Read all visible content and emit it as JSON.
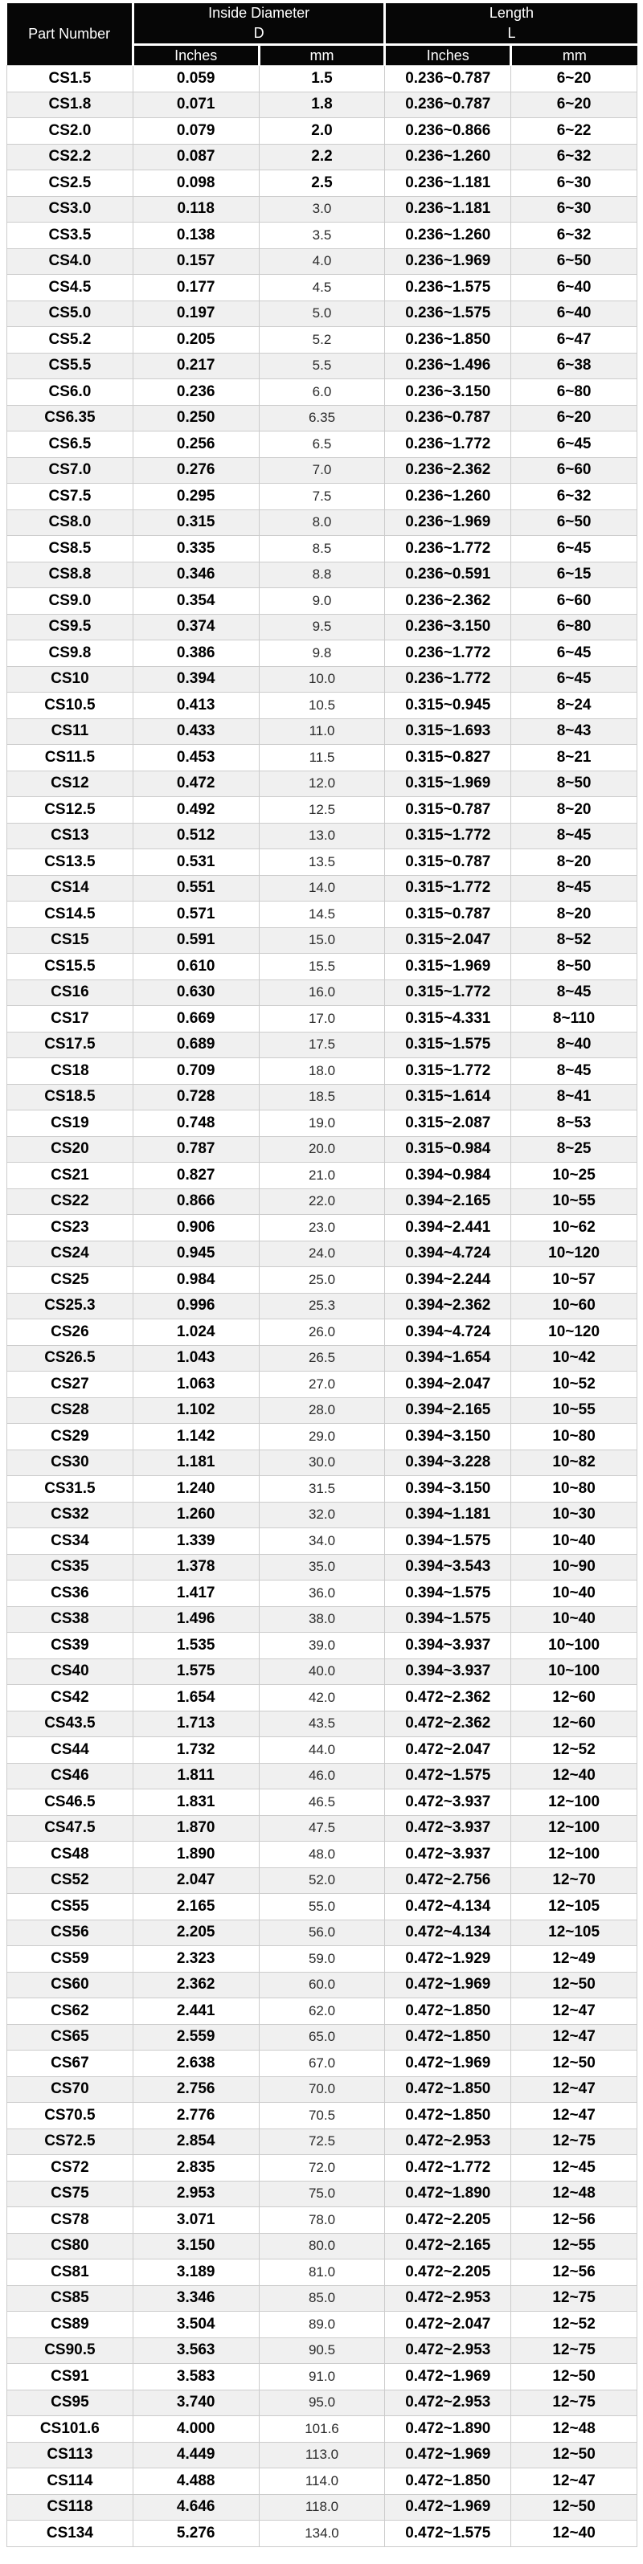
{
  "table": {
    "header": {
      "part_number": "Part Number",
      "inside_diameter": {
        "title": "Inside Diameter",
        "symbol": "D"
      },
      "length": {
        "title": "Length",
        "symbol": "L"
      },
      "units": {
        "inches": "Inches",
        "mm": "mm"
      }
    },
    "columns": [
      "part-number",
      "d-inches",
      "d-mm",
      "l-inches",
      "l-mm"
    ],
    "rows": [
      [
        "CS1.5",
        "0.059",
        "1.5",
        "0.236~0.787",
        "6~20"
      ],
      [
        "CS1.8",
        "0.071",
        "1.8",
        "0.236~0.787",
        "6~20"
      ],
      [
        "CS2.0",
        "0.079",
        "2.0",
        "0.236~0.866",
        "6~22"
      ],
      [
        "CS2.2",
        "0.087",
        "2.2",
        "0.236~1.260",
        "6~32"
      ],
      [
        "CS2.5",
        "0.098",
        "2.5",
        "0.236~1.181",
        "6~30"
      ],
      [
        "CS3.0",
        "0.118",
        "3.0",
        "0.236~1.181",
        "6~30"
      ],
      [
        "CS3.5",
        "0.138",
        "3.5",
        "0.236~1.260",
        "6~32"
      ],
      [
        "CS4.0",
        "0.157",
        "4.0",
        "0.236~1.969",
        "6~50"
      ],
      [
        "CS4.5",
        "0.177",
        "4.5",
        "0.236~1.575",
        "6~40"
      ],
      [
        "CS5.0",
        "0.197",
        "5.0",
        "0.236~1.575",
        "6~40"
      ],
      [
        "CS5.2",
        "0.205",
        "5.2",
        "0.236~1.850",
        "6~47"
      ],
      [
        "CS5.5",
        "0.217",
        "5.5",
        "0.236~1.496",
        "6~38"
      ],
      [
        "CS6.0",
        "0.236",
        "6.0",
        "0.236~3.150",
        "6~80"
      ],
      [
        "CS6.35",
        "0.250",
        "6.35",
        "0.236~0.787",
        "6~20"
      ],
      [
        "CS6.5",
        "0.256",
        "6.5",
        "0.236~1.772",
        "6~45"
      ],
      [
        "CS7.0",
        "0.276",
        "7.0",
        "0.236~2.362",
        "6~60"
      ],
      [
        "CS7.5",
        "0.295",
        "7.5",
        "0.236~1.260",
        "6~32"
      ],
      [
        "CS8.0",
        "0.315",
        "8.0",
        "0.236~1.969",
        "6~50"
      ],
      [
        "CS8.5",
        "0.335",
        "8.5",
        "0.236~1.772",
        "6~45"
      ],
      [
        "CS8.8",
        "0.346",
        "8.8",
        "0.236~0.591",
        "6~15"
      ],
      [
        "CS9.0",
        "0.354",
        "9.0",
        "0.236~2.362",
        "6~60"
      ],
      [
        "CS9.5",
        "0.374",
        "9.5",
        "0.236~3.150",
        "6~80"
      ],
      [
        "CS9.8",
        "0.386",
        "9.8",
        "0.236~1.772",
        "6~45"
      ],
      [
        "CS10",
        "0.394",
        "10.0",
        "0.236~1.772",
        "6~45"
      ],
      [
        "CS10.5",
        "0.413",
        "10.5",
        "0.315~0.945",
        "8~24"
      ],
      [
        "CS11",
        "0.433",
        "11.0",
        "0.315~1.693",
        "8~43"
      ],
      [
        "CS11.5",
        "0.453",
        "11.5",
        "0.315~0.827",
        "8~21"
      ],
      [
        "CS12",
        "0.472",
        "12.0",
        "0.315~1.969",
        "8~50"
      ],
      [
        "CS12.5",
        "0.492",
        "12.5",
        "0.315~0.787",
        "8~20"
      ],
      [
        "CS13",
        "0.512",
        "13.0",
        "0.315~1.772",
        "8~45"
      ],
      [
        "CS13.5",
        "0.531",
        "13.5",
        "0.315~0.787",
        "8~20"
      ],
      [
        "CS14",
        "0.551",
        "14.0",
        "0.315~1.772",
        "8~45"
      ],
      [
        "CS14.5",
        "0.571",
        "14.5",
        "0.315~0.787",
        "8~20"
      ],
      [
        "CS15",
        "0.591",
        "15.0",
        "0.315~2.047",
        "8~52"
      ],
      [
        "CS15.5",
        "0.610",
        "15.5",
        "0.315~1.969",
        "8~50"
      ],
      [
        "CS16",
        "0.630",
        "16.0",
        "0.315~1.772",
        "8~45"
      ],
      [
        "CS17",
        "0.669",
        "17.0",
        "0.315~4.331",
        "8~110"
      ],
      [
        "CS17.5",
        "0.689",
        "17.5",
        "0.315~1.575",
        "8~40"
      ],
      [
        "CS18",
        "0.709",
        "18.0",
        "0.315~1.772",
        "8~45"
      ],
      [
        "CS18.5",
        "0.728",
        "18.5",
        "0.315~1.614",
        "8~41"
      ],
      [
        "CS19",
        "0.748",
        "19.0",
        "0.315~2.087",
        "8~53"
      ],
      [
        "CS20",
        "0.787",
        "20.0",
        "0.315~0.984",
        "8~25"
      ],
      [
        "CS21",
        "0.827",
        "21.0",
        "0.394~0.984",
        "10~25"
      ],
      [
        "CS22",
        "0.866",
        "22.0",
        "0.394~2.165",
        "10~55"
      ],
      [
        "CS23",
        "0.906",
        "23.0",
        "0.394~2.441",
        "10~62"
      ],
      [
        "CS24",
        "0.945",
        "24.0",
        "0.394~4.724",
        "10~120"
      ],
      [
        "CS25",
        "0.984",
        "25.0",
        "0.394~2.244",
        "10~57"
      ],
      [
        "CS25.3",
        "0.996",
        "25.3",
        "0.394~2.362",
        "10~60"
      ],
      [
        "CS26",
        "1.024",
        "26.0",
        "0.394~4.724",
        "10~120"
      ],
      [
        "CS26.5",
        "1.043",
        "26.5",
        "0.394~1.654",
        "10~42"
      ],
      [
        "CS27",
        "1.063",
        "27.0",
        "0.394~2.047",
        "10~52"
      ],
      [
        "CS28",
        "1.102",
        "28.0",
        "0.394~2.165",
        "10~55"
      ],
      [
        "CS29",
        "1.142",
        "29.0",
        "0.394~3.150",
        "10~80"
      ],
      [
        "CS30",
        "1.181",
        "30.0",
        "0.394~3.228",
        "10~82"
      ],
      [
        "CS31.5",
        "1.240",
        "31.5",
        "0.394~3.150",
        "10~80"
      ],
      [
        "CS32",
        "1.260",
        "32.0",
        "0.394~1.181",
        "10~30"
      ],
      [
        "CS34",
        "1.339",
        "34.0",
        "0.394~1.575",
        "10~40"
      ],
      [
        "CS35",
        "1.378",
        "35.0",
        "0.394~3.543",
        "10~90"
      ],
      [
        "CS36",
        "1.417",
        "36.0",
        "0.394~1.575",
        "10~40"
      ],
      [
        "CS38",
        "1.496",
        "38.0",
        "0.394~1.575",
        "10~40"
      ],
      [
        "CS39",
        "1.535",
        "39.0",
        "0.394~3.937",
        "10~100"
      ],
      [
        "CS40",
        "1.575",
        "40.0",
        "0.394~3.937",
        "10~100"
      ],
      [
        "CS42",
        "1.654",
        "42.0",
        "0.472~2.362",
        "12~60"
      ],
      [
        "CS43.5",
        "1.713",
        "43.5",
        "0.472~2.362",
        "12~60"
      ],
      [
        "CS44",
        "1.732",
        "44.0",
        "0.472~2.047",
        "12~52"
      ],
      [
        "CS46",
        "1.811",
        "46.0",
        "0.472~1.575",
        "12~40"
      ],
      [
        "CS46.5",
        "1.831",
        "46.5",
        "0.472~3.937",
        "12~100"
      ],
      [
        "CS47.5",
        "1.870",
        "47.5",
        "0.472~3.937",
        "12~100"
      ],
      [
        "CS48",
        "1.890",
        "48.0",
        "0.472~3.937",
        "12~100"
      ],
      [
        "CS52",
        "2.047",
        "52.0",
        "0.472~2.756",
        "12~70"
      ],
      [
        "CS55",
        "2.165",
        "55.0",
        "0.472~4.134",
        "12~105"
      ],
      [
        "CS56",
        "2.205",
        "56.0",
        "0.472~4.134",
        "12~105"
      ],
      [
        "CS59",
        "2.323",
        "59.0",
        "0.472~1.929",
        "12~49"
      ],
      [
        "CS60",
        "2.362",
        "60.0",
        "0.472~1.969",
        "12~50"
      ],
      [
        "CS62",
        "2.441",
        "62.0",
        "0.472~1.850",
        "12~47"
      ],
      [
        "CS65",
        "2.559",
        "65.0",
        "0.472~1.850",
        "12~47"
      ],
      [
        "CS67",
        "2.638",
        "67.0",
        "0.472~1.969",
        "12~50"
      ],
      [
        "CS70",
        "2.756",
        "70.0",
        "0.472~1.850",
        "12~47"
      ],
      [
        "CS70.5",
        "2.776",
        "70.5",
        "0.472~1.850",
        "12~47"
      ],
      [
        "CS72.5",
        "2.854",
        "72.5",
        "0.472~2.953",
        "12~75"
      ],
      [
        "CS72",
        "2.835",
        "72.0",
        "0.472~1.772",
        "12~45"
      ],
      [
        "CS75",
        "2.953",
        "75.0",
        "0.472~1.890",
        "12~48"
      ],
      [
        "CS78",
        "3.071",
        "78.0",
        "0.472~2.205",
        "12~56"
      ],
      [
        "CS80",
        "3.150",
        "80.0",
        "0.472~2.165",
        "12~55"
      ],
      [
        "CS81",
        "3.189",
        "81.0",
        "0.472~2.205",
        "12~56"
      ],
      [
        "CS85",
        "3.346",
        "85.0",
        "0.472~2.953",
        "12~75"
      ],
      [
        "CS89",
        "3.504",
        "89.0",
        "0.472~2.047",
        "12~52"
      ],
      [
        "CS90.5",
        "3.563",
        "90.5",
        "0.472~2.953",
        "12~75"
      ],
      [
        "CS91",
        "3.583",
        "91.0",
        "0.472~1.969",
        "12~50"
      ],
      [
        "CS95",
        "3.740",
        "95.0",
        "0.472~2.953",
        "12~75"
      ],
      [
        "CS101.6",
        "4.000",
        "101.6",
        "0.472~1.890",
        "12~48"
      ],
      [
        "CS113",
        "4.449",
        "113.0",
        "0.472~1.969",
        "12~50"
      ],
      [
        "CS114",
        "4.488",
        "114.0",
        "0.472~1.850",
        "12~47"
      ],
      [
        "CS118",
        "4.646",
        "118.0",
        "0.472~1.969",
        "12~50"
      ],
      [
        "CS134",
        "5.276",
        "134.0",
        "0.472~1.575",
        "12~40"
      ]
    ]
  },
  "colors": {
    "header_bg": "#060606",
    "header_text": "#ffffff",
    "row_alt_bg": "#f0f0f0",
    "border": "#cccccc",
    "body_text": "#000000"
  }
}
